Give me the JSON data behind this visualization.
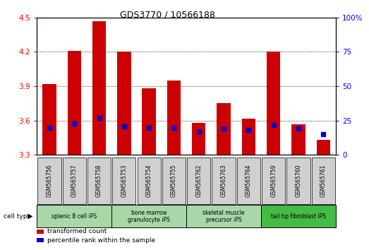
{
  "title": "GDS3770 / 10566188",
  "samples": [
    "GSM565756",
    "GSM565757",
    "GSM565758",
    "GSM565753",
    "GSM565754",
    "GSM565755",
    "GSM565762",
    "GSM565763",
    "GSM565764",
    "GSM565759",
    "GSM565760",
    "GSM565761"
  ],
  "transformed_count": [
    3.92,
    4.21,
    4.47,
    4.2,
    3.88,
    3.95,
    3.58,
    3.75,
    3.62,
    4.2,
    3.57,
    3.43
  ],
  "percentile_rank": [
    20,
    23,
    27,
    21,
    20,
    20,
    17,
    19,
    18,
    22,
    19,
    15
  ],
  "y_min": 3.3,
  "y_max": 4.5,
  "y_ticks": [
    3.3,
    3.6,
    3.9,
    4.2,
    4.5
  ],
  "y2_ticks": [
    0,
    25,
    50,
    75,
    100
  ],
  "bar_color": "#cc0000",
  "blue_color": "#0000cc",
  "cell_types": [
    {
      "label": "splenic B cell iPS",
      "start": 0,
      "end": 3
    },
    {
      "label": "bone marrow\ngranulocyte iPS",
      "start": 3,
      "end": 6
    },
    {
      "label": "skeletal muscle\nprecursor iPS",
      "start": 6,
      "end": 9
    },
    {
      "label": "tail tip fibroblast iPS",
      "start": 9,
      "end": 12
    }
  ],
  "cell_type_colors": [
    "#a8d8a8",
    "#a8d8a8",
    "#a8d8a8",
    "#44bb44"
  ],
  "plot_bg": "#ffffff",
  "sample_box_color": "#d0d0d0"
}
